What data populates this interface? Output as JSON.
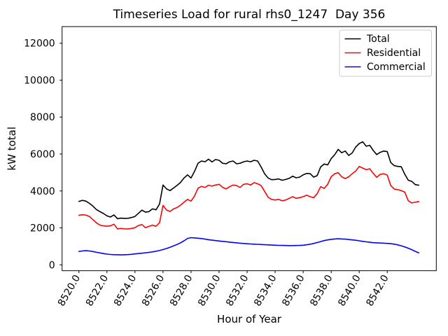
{
  "chart_data": {
    "type": "line",
    "title": "Timeseries Load for rural rhs0_1247  Day 356",
    "xlabel": "Hour of Year",
    "ylabel": "kW total",
    "grid": false,
    "legend_position": "upper right",
    "xlim": [
      8518.8,
      8545.5
    ],
    "ylim": [
      -318,
      12899
    ],
    "x_ticks": [
      8520,
      8522,
      8524,
      8526,
      8528,
      8530,
      8532,
      8534,
      8536,
      8538,
      8540,
      8542
    ],
    "x_tick_labels": [
      "8520.0",
      "8522.0",
      "8524.0",
      "8526.0",
      "8528.0",
      "8530.0",
      "8532.0",
      "8534.0",
      "8536.0",
      "8538.0",
      "8540.0",
      "8542.0"
    ],
    "y_ticks": [
      0,
      2000,
      4000,
      6000,
      8000,
      10000,
      12000
    ],
    "y_tick_labels": [
      "0",
      "2000",
      "4000",
      "6000",
      "8000",
      "10000",
      "12000"
    ],
    "x": [
      8520,
      8520.25,
      8520.5,
      8520.75,
      8521,
      8521.25,
      8521.5,
      8521.75,
      8522,
      8522.25,
      8522.5,
      8522.75,
      8523,
      8523.25,
      8523.5,
      8523.75,
      8524,
      8524.25,
      8524.5,
      8524.75,
      8525,
      8525.25,
      8525.5,
      8525.75,
      8526,
      8526.25,
      8526.5,
      8526.75,
      8527,
      8527.25,
      8527.5,
      8527.75,
      8528,
      8528.25,
      8528.5,
      8528.75,
      8529,
      8529.25,
      8529.5,
      8529.75,
      8530,
      8530.25,
      8530.5,
      8530.75,
      8531,
      8531.25,
      8531.5,
      8531.75,
      8532,
      8532.25,
      8532.5,
      8532.75,
      8533,
      8533.25,
      8533.5,
      8533.75,
      8534,
      8534.25,
      8534.5,
      8534.75,
      8535,
      8535.25,
      8535.5,
      8535.75,
      8536,
      8536.25,
      8536.5,
      8536.75,
      8537,
      8537.25,
      8537.5,
      8537.75,
      8538,
      8538.25,
      8538.5,
      8538.75,
      8539,
      8539.25,
      8539.5,
      8539.75,
      8540,
      8540.25,
      8540.5,
      8540.75,
      8541,
      8541.25,
      8541.5,
      8541.75,
      8542,
      8542.25,
      8542.5,
      8542.75,
      8543,
      8543.25,
      8543.5,
      8543.75,
      8544,
      8544.25
    ],
    "series": [
      {
        "name": "Total",
        "color": "#000000",
        "values": [
          3430,
          3490,
          3450,
          3330,
          3180,
          2990,
          2880,
          2780,
          2650,
          2590,
          2700,
          2500,
          2530,
          2510,
          2520,
          2560,
          2620,
          2790,
          2960,
          2850,
          2880,
          3030,
          2980,
          3290,
          4320,
          4110,
          4020,
          4160,
          4300,
          4460,
          4700,
          4870,
          4700,
          5060,
          5500,
          5620,
          5580,
          5720,
          5570,
          5700,
          5660,
          5500,
          5470,
          5580,
          5620,
          5470,
          5500,
          5580,
          5620,
          5580,
          5660,
          5620,
          5300,
          4930,
          4700,
          4610,
          4620,
          4650,
          4580,
          4620,
          4680,
          4800,
          4710,
          4750,
          4870,
          4950,
          4930,
          4750,
          4830,
          5300,
          5460,
          5410,
          5750,
          5960,
          6250,
          6070,
          6160,
          5920,
          6060,
          6380,
          6570,
          6660,
          6420,
          6470,
          6190,
          5970,
          6090,
          6160,
          6130,
          5540,
          5370,
          5330,
          5310,
          4910,
          4580,
          4520,
          4340,
          4310
        ]
      },
      {
        "name": "Residential",
        "color": "#ff0000",
        "values": [
          2680,
          2710,
          2690,
          2620,
          2450,
          2270,
          2150,
          2110,
          2090,
          2110,
          2200,
          1950,
          1970,
          1950,
          1940,
          1970,
          2010,
          2130,
          2180,
          2010,
          2080,
          2150,
          2090,
          2280,
          3220,
          2970,
          2890,
          3030,
          3100,
          3230,
          3390,
          3540,
          3450,
          3730,
          4150,
          4250,
          4190,
          4310,
          4260,
          4320,
          4360,
          4200,
          4110,
          4230,
          4320,
          4290,
          4190,
          4360,
          4390,
          4320,
          4450,
          4390,
          4290,
          3980,
          3660,
          3540,
          3510,
          3540,
          3470,
          3510,
          3600,
          3690,
          3600,
          3640,
          3690,
          3770,
          3690,
          3640,
          3850,
          4230,
          4140,
          4360,
          4770,
          4930,
          4990,
          4770,
          4670,
          4770,
          4930,
          5080,
          5330,
          5240,
          5150,
          5200,
          4950,
          4740,
          4900,
          4930,
          4860,
          4290,
          4100,
          4070,
          4020,
          3940,
          3470,
          3350,
          3390,
          3430
        ]
      },
      {
        "name": "Commercial",
        "color": "#0000ff",
        "values": [
          720,
          750,
          765,
          750,
          720,
          680,
          645,
          610,
          580,
          560,
          550,
          545,
          540,
          545,
          555,
          570,
          590,
          610,
          630,
          650,
          675,
          700,
          735,
          775,
          825,
          885,
          950,
          1025,
          1100,
          1190,
          1300,
          1430,
          1470,
          1455,
          1440,
          1420,
          1390,
          1360,
          1335,
          1310,
          1290,
          1270,
          1250,
          1230,
          1210,
          1190,
          1170,
          1155,
          1140,
          1130,
          1120,
          1110,
          1100,
          1090,
          1080,
          1070,
          1060,
          1055,
          1050,
          1045,
          1040,
          1040,
          1045,
          1050,
          1060,
          1085,
          1115,
          1155,
          1205,
          1260,
          1310,
          1350,
          1380,
          1400,
          1410,
          1400,
          1390,
          1370,
          1350,
          1330,
          1300,
          1270,
          1245,
          1220,
          1200,
          1190,
          1180,
          1170,
          1160,
          1145,
          1120,
          1080,
          1030,
          970,
          900,
          820,
          730,
          650
        ]
      }
    ]
  }
}
